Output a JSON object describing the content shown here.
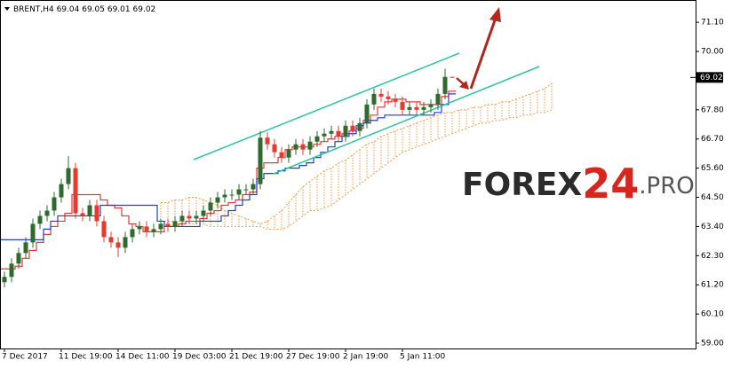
{
  "chart_data": {
    "type": "candlestick",
    "title": "BRENT,H4",
    "categories": [
      "7 Dec 2017",
      null,
      null,
      null,
      null,
      null,
      null,
      null,
      "11 Dec 19:00",
      null,
      null,
      null,
      null,
      null,
      null,
      null,
      "14 Dec 11:00",
      null,
      null,
      null,
      null,
      null,
      null,
      null,
      "19 Dec 03:00",
      null,
      null,
      null,
      null,
      null,
      null,
      null,
      "21 Dec 19:00",
      null,
      null,
      null,
      null,
      null,
      null,
      null,
      "27 Dec 19:00",
      null,
      null,
      null,
      null,
      null,
      null,
      null,
      "2 Jan 19:00",
      null,
      null,
      null,
      null,
      null,
      null,
      null,
      "5 Jan 11:00",
      null,
      null,
      null,
      null,
      null,
      null,
      null,
      null,
      null,
      null,
      null,
      null,
      null,
      null,
      null,
      null,
      null,
      null,
      null,
      null,
      null
    ],
    "open": [
      61.3,
      61.5,
      62.0,
      62.4,
      62.8,
      63.5,
      63.8,
      64.0,
      64.5,
      65.0,
      65.6,
      63.9,
      63.8,
      64.2,
      63.6,
      63.0,
      62.8,
      62.6,
      63.0,
      63.3,
      63.4,
      63.2,
      63.3,
      63.5,
      63.4,
      63.6,
      63.8,
      63.7,
      63.8,
      64.0,
      64.3,
      64.5,
      64.6,
      64.6,
      64.8,
      64.8,
      65.0,
      66.75,
      66.5,
      66.2,
      66.0,
      66.3,
      66.5,
      66.3,
      66.6,
      66.8,
      66.9,
      67.0,
      66.8,
      67.2,
      67.0,
      67.3,
      68.0,
      68.4,
      68.3,
      68.2,
      68.1,
      67.8,
      67.9,
      67.8,
      67.9,
      68.0,
      68.4,
      69.04,
      null,
      null,
      null,
      null,
      null,
      null,
      null,
      null,
      null,
      null,
      null,
      null,
      null,
      null
    ],
    "high": [
      61.7,
      62.2,
      62.6,
      63.0,
      63.7,
      64.0,
      64.2,
      64.7,
      65.2,
      66.05,
      65.8,
      64.1,
      64.4,
      64.4,
      63.8,
      63.2,
      63.0,
      63.2,
      63.5,
      63.6,
      63.6,
      63.5,
      63.7,
      63.7,
      63.8,
      64.0,
      64.0,
      64.0,
      64.2,
      64.5,
      64.7,
      64.8,
      64.8,
      65.0,
      65.0,
      65.2,
      67.0,
      66.95,
      66.7,
      66.4,
      66.5,
      66.7,
      66.7,
      66.8,
      67.0,
      67.1,
      67.2,
      67.2,
      67.4,
      67.4,
      67.5,
      68.2,
      68.6,
      68.6,
      68.5,
      68.4,
      68.3,
      68.1,
      68.1,
      68.1,
      68.2,
      68.6,
      69.35,
      69.05,
      null,
      null,
      null,
      null,
      null,
      null,
      null,
      null,
      null,
      null,
      null,
      null,
      null,
      null
    ],
    "low": [
      61.1,
      61.3,
      61.8,
      62.2,
      62.6,
      63.3,
      63.6,
      63.8,
      64.3,
      64.8,
      63.7,
      63.6,
      63.6,
      63.4,
      62.8,
      62.6,
      62.25,
      62.4,
      62.8,
      63.1,
      63.0,
      63.0,
      63.1,
      63.2,
      63.2,
      63.4,
      63.5,
      63.5,
      63.6,
      63.8,
      64.1,
      64.3,
      64.4,
      64.4,
      64.6,
      64.6,
      64.8,
      66.3,
      66.0,
      65.8,
      65.8,
      66.1,
      66.1,
      66.1,
      66.4,
      66.6,
      66.7,
      66.6,
      66.6,
      66.8,
      66.8,
      67.1,
      67.8,
      68.1,
      68.0,
      67.9,
      67.6,
      67.6,
      67.6,
      67.6,
      67.7,
      67.8,
      68.2,
      69.01,
      null,
      null,
      null,
      null,
      null,
      null,
      null,
      null,
      null,
      null,
      null,
      null,
      null,
      null
    ],
    "close": [
      61.5,
      62.0,
      62.4,
      62.8,
      63.5,
      63.8,
      64.0,
      64.5,
      65.0,
      65.6,
      63.9,
      63.8,
      64.2,
      63.6,
      63.0,
      62.8,
      62.6,
      63.0,
      63.3,
      63.4,
      63.2,
      63.3,
      63.5,
      63.4,
      63.6,
      63.8,
      63.7,
      63.8,
      64.0,
      64.3,
      64.5,
      64.6,
      64.6,
      64.8,
      64.8,
      65.0,
      66.75,
      66.5,
      66.2,
      66.0,
      66.3,
      66.5,
      66.3,
      66.6,
      66.8,
      66.9,
      67.0,
      66.8,
      67.2,
      67.0,
      67.3,
      68.0,
      68.4,
      68.3,
      68.2,
      68.1,
      67.8,
      67.9,
      67.8,
      67.9,
      68.0,
      68.4,
      69.04,
      69.02,
      null,
      null,
      null,
      null,
      null,
      null,
      null,
      null,
      null,
      null,
      null,
      null,
      null,
      null
    ],
    "up_color": "#2e6b2e",
    "down_color": "#e8382f",
    "series": [
      {
        "color": "#e53935",
        "values": [
          61.8,
          61.8,
          61.9,
          62.2,
          62.5,
          62.8,
          63.1,
          63.4,
          63.6,
          63.9,
          64.6,
          64.6,
          64.6,
          64.6,
          64.4,
          64.2,
          64.1,
          63.8,
          63.5,
          63.4,
          63.2,
          63.2,
          63.2,
          63.4,
          63.4,
          63.5,
          63.6,
          63.6,
          63.7,
          63.9,
          64.0,
          64.2,
          64.3,
          64.4,
          64.6,
          64.7,
          65.6,
          65.8,
          65.8,
          66.0,
          66.3,
          66.4,
          66.4,
          66.4,
          66.5,
          66.6,
          66.7,
          66.8,
          66.9,
          67.0,
          67.1,
          67.4,
          67.6,
          67.9,
          68.1,
          68.2,
          68.2,
          68.1,
          68.1,
          68.0,
          68.0,
          68.0,
          68.3,
          68.5,
          null,
          null,
          null,
          null,
          null,
          null,
          null,
          null,
          null,
          null,
          null,
          null,
          null,
          null
        ]
      },
      {
        "color": "#1e3fd8",
        "values": [
          62.9,
          62.9,
          62.9,
          62.9,
          62.9,
          62.9,
          63.3,
          63.6,
          63.8,
          63.8,
          63.8,
          63.8,
          63.8,
          63.8,
          64.2,
          64.2,
          64.2,
          64.2,
          64.2,
          64.2,
          64.2,
          64.2,
          63.6,
          63.4,
          63.4,
          63.4,
          63.4,
          63.4,
          63.6,
          63.6,
          63.6,
          63.8,
          64.0,
          64.2,
          64.4,
          64.6,
          65.2,
          65.4,
          65.4,
          65.5,
          65.6,
          65.6,
          65.7,
          65.8,
          66.0,
          66.2,
          66.4,
          66.6,
          66.8,
          66.9,
          67.2,
          67.3,
          67.4,
          67.5,
          67.6,
          67.6,
          67.6,
          67.6,
          67.6,
          67.6,
          67.6,
          67.7,
          68.0,
          68.4,
          null,
          null,
          null,
          null,
          null,
          null,
          null,
          null,
          null,
          null,
          null,
          null,
          null,
          null
        ]
      }
    ],
    "cloud": {
      "color": "#f39a45",
      "span_a": [
        null,
        null,
        null,
        null,
        null,
        null,
        null,
        null,
        null,
        null,
        null,
        null,
        null,
        null,
        null,
        null,
        null,
        null,
        null,
        null,
        null,
        null,
        64.3,
        64.3,
        64.4,
        64.4,
        64.5,
        64.5,
        64.4,
        64.3,
        64.2,
        64.0,
        63.9,
        63.8,
        63.7,
        63.6,
        63.5,
        63.6,
        63.8,
        64.0,
        64.3,
        64.6,
        64.9,
        65.1,
        65.3,
        65.5,
        65.6,
        65.8,
        65.9,
        66.1,
        66.3,
        66.5,
        66.6,
        66.8,
        66.9,
        67.0,
        67.1,
        67.2,
        67.3,
        67.4,
        67.5,
        67.6,
        67.7,
        67.7,
        67.8,
        67.8,
        67.9,
        67.9,
        68.0,
        68.0,
        68.1,
        68.1,
        68.2,
        68.3,
        68.4,
        68.5,
        68.6,
        68.8
      ],
      "span_b": [
        null,
        null,
        null,
        null,
        null,
        null,
        null,
        null,
        null,
        null,
        null,
        null,
        null,
        null,
        null,
        null,
        null,
        null,
        null,
        null,
        null,
        null,
        63.6,
        63.6,
        63.6,
        63.6,
        63.5,
        63.5,
        63.5,
        63.4,
        63.4,
        63.4,
        63.4,
        63.4,
        63.4,
        63.4,
        63.4,
        63.3,
        63.3,
        63.3,
        63.4,
        63.6,
        63.8,
        64.0,
        64.0,
        64.1,
        64.2,
        64.4,
        64.6,
        64.8,
        65.0,
        65.2,
        65.4,
        65.6,
        65.8,
        66.0,
        66.2,
        66.3,
        66.4,
        66.5,
        66.6,
        66.7,
        66.8,
        66.9,
        67.0,
        67.1,
        67.2,
        67.3,
        67.3,
        67.4,
        67.4,
        67.5,
        67.5,
        67.6,
        67.6,
        67.7,
        67.7,
        67.8
      ]
    },
    "ylim": [
      58.8,
      71.94
    ],
    "yticks": [
      {
        "value": 59,
        "label": "59.00"
      },
      {
        "value": 60.1,
        "label": "60.10"
      },
      {
        "value": 61.2,
        "label": "61.20"
      },
      {
        "value": 62.3,
        "label": "62.30"
      },
      {
        "value": 63.4,
        "label": "63.40"
      },
      {
        "value": 64.5,
        "label": "64.50"
      },
      {
        "value": 65.6,
        "label": "65.60"
      },
      {
        "value": 66.7,
        "label": "66.70"
      },
      {
        "value": 67.8,
        "label": "67.80"
      },
      {
        "value": 70,
        "label": "70.00"
      },
      {
        "value": 71.1,
        "label": "71.10"
      }
    ],
    "watermark": [
      "FOREX",
      "24",
      ".PRO"
    ]
  }
}
